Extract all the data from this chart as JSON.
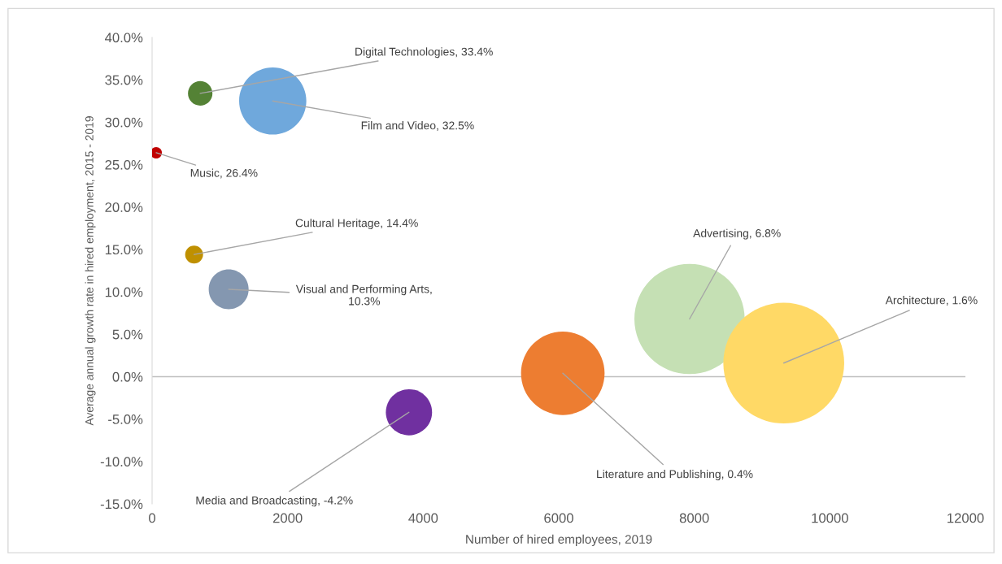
{
  "chart_data": {
    "type": "bubble",
    "xlabel": "Number of hired employees, 2019",
    "ylabel": "Average annual growth rate in hired employment, 2015 - 2019",
    "x": [
      710,
      1780,
      60,
      620,
      1130,
      3790,
      6060,
      7930,
      9320
    ],
    "values": [
      33.4,
      32.5,
      26.4,
      14.4,
      10.3,
      -4.2,
      0.4,
      6.8,
      1.6
    ],
    "sizes": [
      0.041,
      0.309,
      0.009,
      0.022,
      0.109,
      0.146,
      0.478,
      0.833,
      1
    ],
    "colors": [
      "#548235",
      "#6fa8dc",
      "#c00000",
      "#bf9000",
      "#8497b0",
      "#7030a0",
      "#ed7d31",
      "#c5e0b4",
      "#ffd966"
    ],
    "xlim": [
      0,
      12000
    ],
    "xticks": [
      0,
      2000,
      4000,
      6000,
      8000,
      10000,
      12000
    ],
    "ylim": [
      -15,
      40
    ],
    "yticks": [
      {
        "value": -15,
        "label": "-15.0%"
      },
      {
        "value": -10,
        "label": "-10.0%"
      },
      {
        "value": -5,
        "label": "-5.0%"
      },
      {
        "value": 0,
        "label": "0.0%"
      },
      {
        "value": 5,
        "label": "5.0%"
      },
      {
        "value": 10,
        "label": "10.0%"
      },
      {
        "value": 15,
        "label": "15.0%"
      },
      {
        "value": 20,
        "label": "20.0%"
      },
      {
        "value": 25,
        "label": "25.0%"
      },
      {
        "value": 30,
        "label": "30.0%"
      },
      {
        "value": 35,
        "label": "35.0%"
      },
      {
        "value": 40,
        "label": "40.0%"
      }
    ],
    "ref_lines": [
      {
        "axis": "y",
        "value": 0,
        "color": "#bfbfbf"
      }
    ],
    "grid": false,
    "legend": false,
    "annotations": [
      {
        "text": "Digital Technologies, 33.4%",
        "x": 710,
        "y": 33.4
      },
      {
        "text": "Film and Video, 32.5%",
        "x": 1780,
        "y": 32.5
      },
      {
        "text": "Music, 26.4%",
        "x": 60,
        "y": 26.4
      },
      {
        "text": "Cultural Heritage, 14.4%",
        "x": 620,
        "y": 14.4
      },
      {
        "text": "Visual and Performing Arts,\n10.3%",
        "x": 1130,
        "y": 10.3
      },
      {
        "text": "Media and Broadcasting, -4.2%",
        "x": 3790,
        "y": -4.2
      },
      {
        "text": "Literature and Publishing, 0.4%",
        "x": 6060,
        "y": 0.4
      },
      {
        "text": "Advertising, 6.8%",
        "x": 7930,
        "y": 6.8
      },
      {
        "text": "Architecture, 1.6%",
        "x": 9320,
        "y": 1.6
      }
    ]
  }
}
